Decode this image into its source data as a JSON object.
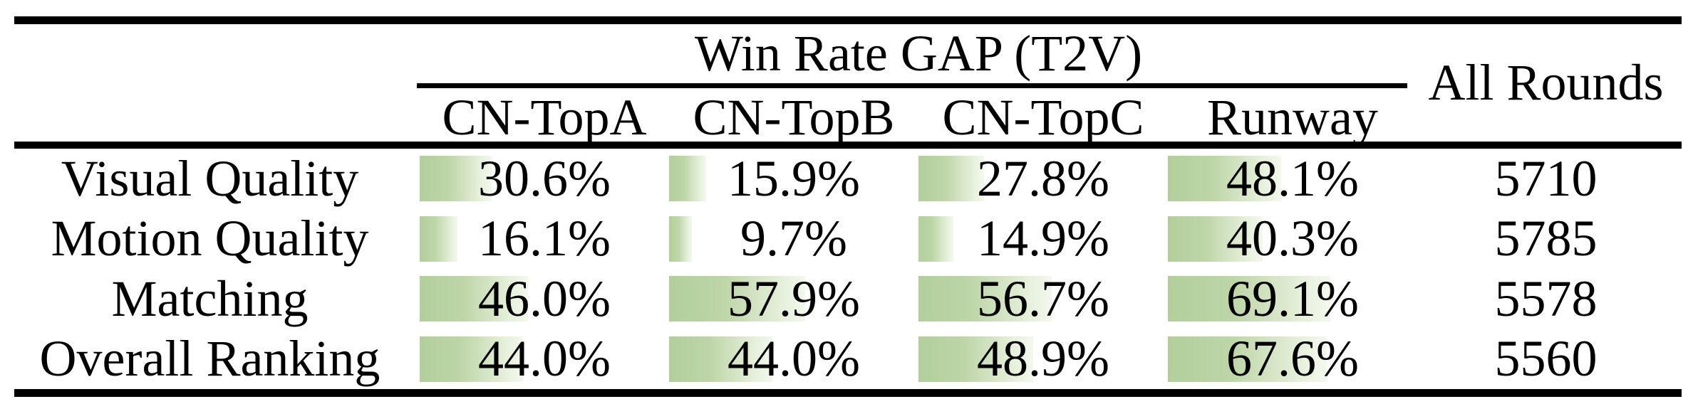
{
  "table": {
    "group_header": "Win Rate GAP (T2V)",
    "all_rounds_header": "All Rounds",
    "columns": [
      "CN-TopA",
      "CN-TopB",
      "CN-TopC",
      "Runway"
    ],
    "rows": [
      {
        "label": "Visual Quality",
        "values": [
          "30.6%",
          "15.9%",
          "27.8%",
          "48.1%"
        ],
        "all_rounds": "5710"
      },
      {
        "label": "Motion Quality",
        "values": [
          "16.1%",
          "9.7%",
          "14.9%",
          "40.3%"
        ],
        "all_rounds": "5785"
      },
      {
        "label": "Matching",
        "values": [
          "46.0%",
          "57.9%",
          "56.7%",
          "69.1%"
        ],
        "all_rounds": "5578"
      },
      {
        "label": "Overall Ranking",
        "values": [
          "44.0%",
          "44.0%",
          "48.9%",
          "67.6%"
        ],
        "all_rounds": "5560"
      }
    ],
    "bar_color_left": "#b2cf9b",
    "bar_color_right": "#f3f8ee"
  },
  "chart_data": {
    "type": "table",
    "title": "Win Rate GAP (T2V)",
    "categories": [
      "Visual Quality",
      "Motion Quality",
      "Matching",
      "Overall Ranking"
    ],
    "series": [
      {
        "name": "CN-TopA",
        "values": [
          30.6,
          16.1,
          46.0,
          44.0
        ]
      },
      {
        "name": "CN-TopB",
        "values": [
          15.9,
          9.7,
          57.9,
          44.0
        ]
      },
      {
        "name": "CN-TopC",
        "values": [
          27.8,
          14.9,
          56.7,
          48.9
        ]
      },
      {
        "name": "Runway",
        "values": [
          48.1,
          40.3,
          69.1,
          67.6
        ]
      },
      {
        "name": "All Rounds",
        "values": [
          5710,
          5785,
          5578,
          5560
        ]
      }
    ],
    "value_unit": "%",
    "bar_range": [
      0,
      100
    ]
  }
}
